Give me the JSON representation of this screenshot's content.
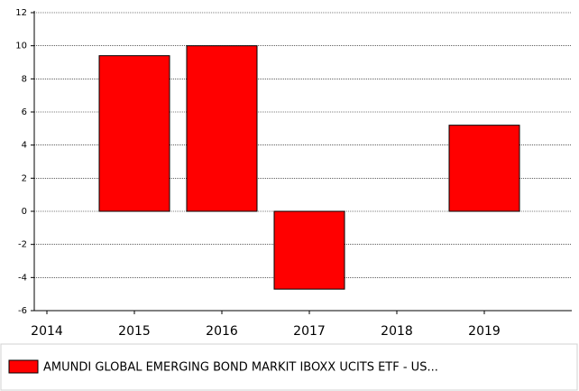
{
  "chart_data": {
    "type": "bar",
    "categories": [
      "2014",
      "2015",
      "2016",
      "2017",
      "2018",
      "2019"
    ],
    "series": [
      {
        "name": "AMUNDI GLOBAL EMERGING BOND MARKIT IBOXX UCITS ETF - US...",
        "color": "#ff0000",
        "values": [
          null,
          9.4,
          10.0,
          -4.7,
          null,
          5.2
        ]
      }
    ],
    "ylim": [
      -6,
      12
    ],
    "yticks": [
      -6,
      -4,
      -2,
      0,
      2,
      4,
      6,
      8,
      10,
      12
    ],
    "grid": true
  }
}
